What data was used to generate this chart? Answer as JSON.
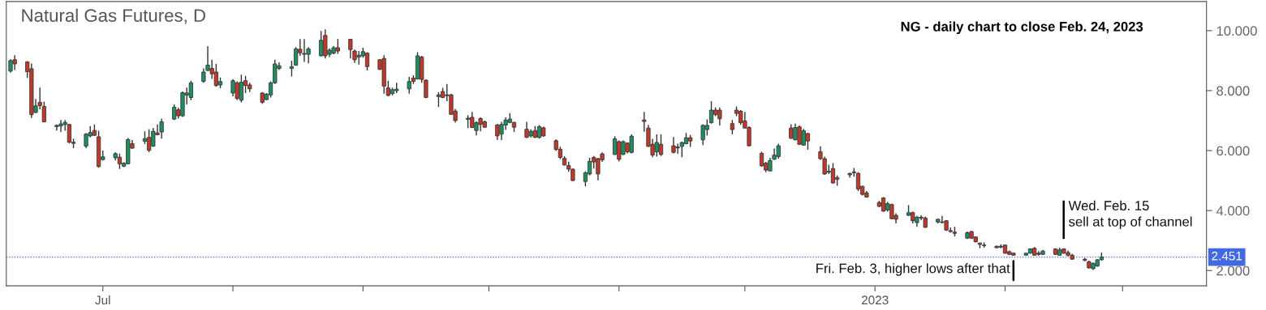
{
  "chart_data": {
    "type": "candlestick",
    "title": "Natural Gas Futures, D",
    "subtitle": "NG - daily chart to close Feb. 24, 2023",
    "x": [
      "2022-06-09",
      "2022-06-10",
      "2022-06-13",
      "2022-06-14",
      "2022-06-15",
      "2022-06-16",
      "2022-06-17",
      "2022-06-20",
      "2022-06-21",
      "2022-06-22",
      "2022-06-23",
      "2022-06-24",
      "2022-06-27",
      "2022-06-28",
      "2022-06-29",
      "2022-06-30",
      "2022-07-01",
      "2022-07-04",
      "2022-07-05",
      "2022-07-06",
      "2022-07-07",
      "2022-07-08",
      "2022-07-11",
      "2022-07-12",
      "2022-07-13",
      "2022-07-14",
      "2022-07-15",
      "2022-07-18",
      "2022-07-19",
      "2022-07-20",
      "2022-07-21",
      "2022-07-22",
      "2022-07-25",
      "2022-07-26",
      "2022-07-27",
      "2022-07-28",
      "2022-07-29",
      "2022-08-01",
      "2022-08-02",
      "2022-08-03",
      "2022-08-04",
      "2022-08-05",
      "2022-08-08",
      "2022-08-09",
      "2022-08-10",
      "2022-08-11",
      "2022-08-12",
      "2022-08-15",
      "2022-08-16",
      "2022-08-17",
      "2022-08-18",
      "2022-08-19",
      "2022-08-22",
      "2022-08-23",
      "2022-08-24",
      "2022-08-25",
      "2022-08-26",
      "2022-08-29",
      "2022-08-30",
      "2022-08-31",
      "2022-09-01",
      "2022-09-02",
      "2022-09-05",
      "2022-09-06",
      "2022-09-07",
      "2022-09-08",
      "2022-09-09",
      "2022-09-12",
      "2022-09-13",
      "2022-09-14",
      "2022-09-15",
      "2022-09-16",
      "2022-09-19",
      "2022-09-20",
      "2022-09-21",
      "2022-09-22",
      "2022-09-23",
      "2022-09-26",
      "2022-09-27",
      "2022-09-28",
      "2022-09-29",
      "2022-09-30",
      "2022-10-03",
      "2022-10-04",
      "2022-10-05",
      "2022-10-06",
      "2022-10-07",
      "2022-10-10",
      "2022-10-11",
      "2022-10-12",
      "2022-10-13",
      "2022-10-14",
      "2022-10-17",
      "2022-10-18",
      "2022-10-19",
      "2022-10-20",
      "2022-10-21",
      "2022-10-24",
      "2022-10-25",
      "2022-10-26",
      "2022-10-27",
      "2022-10-28",
      "2022-10-31",
      "2022-11-01",
      "2022-11-02",
      "2022-11-03",
      "2022-11-04",
      "2022-11-07",
      "2022-11-08",
      "2022-11-09",
      "2022-11-10",
      "2022-11-11",
      "2022-11-14",
      "2022-11-15",
      "2022-11-16",
      "2022-11-17",
      "2022-11-18",
      "2022-11-21",
      "2022-11-22",
      "2022-11-23",
      "2022-11-24",
      "2022-11-25",
      "2022-11-28",
      "2022-11-29",
      "2022-11-30",
      "2022-12-01",
      "2022-12-02",
      "2022-12-05",
      "2022-12-06",
      "2022-12-07",
      "2022-12-08",
      "2022-12-09",
      "2022-12-12",
      "2022-12-13",
      "2022-12-14",
      "2022-12-15",
      "2022-12-16",
      "2022-12-19",
      "2022-12-20",
      "2022-12-21",
      "2022-12-22",
      "2022-12-23",
      "2022-12-26",
      "2022-12-27",
      "2022-12-28",
      "2022-12-29",
      "2022-12-30",
      "2023-01-02",
      "2023-01-03",
      "2023-01-04",
      "2023-01-05",
      "2023-01-06",
      "2023-01-09",
      "2023-01-10",
      "2023-01-11",
      "2023-01-12",
      "2023-01-13",
      "2023-01-16",
      "2023-01-17",
      "2023-01-18",
      "2023-01-19",
      "2023-01-20",
      "2023-01-23",
      "2023-01-24",
      "2023-01-25",
      "2023-01-26",
      "2023-01-27",
      "2023-01-30",
      "2023-01-31",
      "2023-02-01",
      "2023-02-02",
      "2023-02-03",
      "2023-02-06",
      "2023-02-07",
      "2023-02-08",
      "2023-02-09",
      "2023-02-10",
      "2023-02-13",
      "2023-02-14",
      "2023-02-15",
      "2023-02-16",
      "2023-02-17",
      "2023-02-20",
      "2023-02-21",
      "2023-02-22",
      "2023-02-23",
      "2023-02-24"
    ],
    "ohlc": [
      [
        8.65,
        9.05,
        8.6,
        9.0
      ],
      [
        9.03,
        9.18,
        8.69,
        8.89
      ],
      [
        8.96,
        8.98,
        8.42,
        8.63
      ],
      [
        8.73,
        8.9,
        7.09,
        7.2
      ],
      [
        7.27,
        7.72,
        7.25,
        7.49
      ],
      [
        7.61,
        8.1,
        7.38,
        7.5
      ],
      [
        7.47,
        7.63,
        6.94,
        6.96
      ],
      [
        6.8,
        6.87,
        6.66,
        6.84
      ],
      [
        6.82,
        7.02,
        6.62,
        6.89
      ],
      [
        6.87,
        7.02,
        6.66,
        6.94
      ],
      [
        6.87,
        6.89,
        6.24,
        6.28
      ],
      [
        6.28,
        6.4,
        6.08,
        6.24
      ],
      [
        6.15,
        6.58,
        6.08,
        6.55
      ],
      [
        6.49,
        6.82,
        6.44,
        6.6
      ],
      [
        6.67,
        6.87,
        6.49,
        6.51
      ],
      [
        6.46,
        6.66,
        5.43,
        5.47
      ],
      [
        5.7,
        6.0,
        5.67,
        5.79
      ],
      [
        5.76,
        5.94,
        5.67,
        5.9
      ],
      [
        5.78,
        5.9,
        5.39,
        5.56
      ],
      [
        5.48,
        5.61,
        5.45,
        5.58
      ],
      [
        5.56,
        6.42,
        5.54,
        6.37
      ],
      [
        6.23,
        6.35,
        6.06,
        6.08
      ],
      [
        6.31,
        6.64,
        6.22,
        6.4
      ],
      [
        6.44,
        6.71,
        5.95,
        6.01
      ],
      [
        6.15,
        6.76,
        6.12,
        6.64
      ],
      [
        6.59,
        6.87,
        6.51,
        6.53
      ],
      [
        6.62,
        7.07,
        6.4,
        6.96
      ],
      [
        7.05,
        7.54,
        7.02,
        7.45
      ],
      [
        7.36,
        7.43,
        7.07,
        7.16
      ],
      [
        7.16,
        7.97,
        7.12,
        7.93
      ],
      [
        7.85,
        8.1,
        7.54,
        7.92
      ],
      [
        7.77,
        8.33,
        7.68,
        8.26
      ],
      [
        8.31,
        8.74,
        8.26,
        8.62
      ],
      [
        8.67,
        9.48,
        8.65,
        8.85
      ],
      [
        8.74,
        9.03,
        8.4,
        8.56
      ],
      [
        8.62,
        8.89,
        8.13,
        8.17
      ],
      [
        8.19,
        8.44,
        8.08,
        8.3
      ],
      [
        7.92,
        8.38,
        7.81,
        8.33
      ],
      [
        8.26,
        8.31,
        7.68,
        7.74
      ],
      [
        7.68,
        8.53,
        7.61,
        8.28
      ],
      [
        8.33,
        8.49,
        7.92,
        8.17
      ],
      [
        8.19,
        8.26,
        7.95,
        8.06
      ],
      [
        7.92,
        7.95,
        7.56,
        7.61
      ],
      [
        7.7,
        7.92,
        7.68,
        7.88
      ],
      [
        7.86,
        8.31,
        7.77,
        8.26
      ],
      [
        8.26,
        9.03,
        8.22,
        8.89
      ],
      [
        8.74,
        8.94,
        8.69,
        8.83
      ],
      [
        8.74,
        9.0,
        8.47,
        8.8
      ],
      [
        8.85,
        9.45,
        8.83,
        9.39
      ],
      [
        9.38,
        9.72,
        9.16,
        9.26
      ],
      [
        9.21,
        9.72,
        8.96,
        9.24
      ],
      [
        9.21,
        9.45,
        8.91,
        9.39
      ],
      [
        9.16,
        9.99,
        9.14,
        9.68
      ],
      [
        9.84,
        10.04,
        9.07,
        9.16
      ],
      [
        9.21,
        9.41,
        9.12,
        9.35
      ],
      [
        9.25,
        9.48,
        9.21,
        9.43
      ],
      [
        9.43,
        9.72,
        9.23,
        9.32
      ],
      [
        9.71,
        9.72,
        9.07,
        9.37
      ],
      [
        9.32,
        9.37,
        8.92,
        9.03
      ],
      [
        9.12,
        9.32,
        8.87,
        9.18
      ],
      [
        9.16,
        9.43,
        9.1,
        9.3
      ],
      [
        9.25,
        9.28,
        8.67,
        8.8
      ],
      [
        9.03,
        9.05,
        8.69,
        8.71
      ],
      [
        9.07,
        9.18,
        7.9,
        8.15
      ],
      [
        8.09,
        8.33,
        7.81,
        7.84
      ],
      [
        7.9,
        8.1,
        7.84,
        8.03
      ],
      [
        8.0,
        8.26,
        7.92,
        8.05
      ],
      [
        8.06,
        8.46,
        7.9,
        8.3
      ],
      [
        8.42,
        8.51,
        8.22,
        8.31
      ],
      [
        8.39,
        9.28,
        8.37,
        9.16
      ],
      [
        9.12,
        9.16,
        8.26,
        8.37
      ],
      [
        8.35,
        8.37,
        7.75,
        7.77
      ],
      [
        7.8,
        7.95,
        7.45,
        7.86
      ],
      [
        7.97,
        8.09,
        7.75,
        7.77
      ],
      [
        7.83,
        8.22,
        7.65,
        7.86
      ],
      [
        7.86,
        7.9,
        7.19,
        7.21
      ],
      [
        7.32,
        7.39,
        6.93,
        7.0
      ],
      [
        7.04,
        7.18,
        6.75,
        7.08
      ],
      [
        7.11,
        7.29,
        6.75,
        6.77
      ],
      [
        6.67,
        6.98,
        6.51,
        6.93
      ],
      [
        7.07,
        7.11,
        6.64,
        6.87
      ],
      [
        6.96,
        7.0,
        6.76,
        6.78
      ],
      [
        6.85,
        6.89,
        6.35,
        6.49
      ],
      [
        6.55,
        6.96,
        6.35,
        6.87
      ],
      [
        6.85,
        7.11,
        6.69,
        7.02
      ],
      [
        6.94,
        7.25,
        6.91,
        7.05
      ],
      [
        6.94,
        6.96,
        6.62,
        6.78
      ],
      [
        6.71,
        6.96,
        6.42,
        6.44
      ],
      [
        6.49,
        6.71,
        6.44,
        6.64
      ],
      [
        6.67,
        6.82,
        6.42,
        6.44
      ],
      [
        6.44,
        6.85,
        6.4,
        6.8
      ],
      [
        6.76,
        6.8,
        6.46,
        6.49
      ],
      [
        6.33,
        6.37,
        5.99,
        6.04
      ],
      [
        6.04,
        6.13,
        5.72,
        5.77
      ],
      [
        5.74,
        5.81,
        5.5,
        5.52
      ],
      [
        5.5,
        5.63,
        5.29,
        5.38
      ],
      [
        5.38,
        5.41,
        4.98,
        5.0
      ],
      [
        4.97,
        5.31,
        4.81,
        5.26
      ],
      [
        5.22,
        5.76,
        5.17,
        5.64
      ],
      [
        5.77,
        5.82,
        5.4,
        5.62
      ],
      [
        5.73,
        5.76,
        5.01,
        5.22
      ],
      [
        5.89,
        5.94,
        5.62,
        5.69
      ],
      [
        5.87,
        6.48,
        5.85,
        6.39
      ],
      [
        6.3,
        6.34,
        5.64,
        5.71
      ],
      [
        5.87,
        6.34,
        5.85,
        6.3
      ],
      [
        6.25,
        6.27,
        5.91,
        5.96
      ],
      [
        5.94,
        6.54,
        5.91,
        6.48
      ],
      [
        7.02,
        7.29,
        6.63,
        6.97
      ],
      [
        6.75,
        6.86,
        6.12,
        6.14
      ],
      [
        6.21,
        6.39,
        5.78,
        5.85
      ],
      [
        5.96,
        6.54,
        5.8,
        6.27
      ],
      [
        6.21,
        6.54,
        5.82,
        5.87
      ],
      [
        6.16,
        6.45,
        5.91,
        5.94
      ],
      [
        6.12,
        6.23,
        5.89,
        6.09
      ],
      [
        6.14,
        6.3,
        5.78,
        6.27
      ],
      [
        6.23,
        6.59,
        6.21,
        6.43
      ],
      [
        6.43,
        6.52,
        6.12,
        6.32
      ],
      [
        6.36,
        6.88,
        6.18,
        6.84
      ],
      [
        6.7,
        7.04,
        6.5,
        6.84
      ],
      [
        6.93,
        7.65,
        6.9,
        7.35
      ],
      [
        7.35,
        7.44,
        7.15,
        7.2
      ],
      [
        7.35,
        7.44,
        6.84,
        7.06
      ],
      [
        6.9,
        7.02,
        6.54,
        6.7
      ],
      [
        7.35,
        7.47,
        7.15,
        7.24
      ],
      [
        7.31,
        7.35,
        6.86,
        6.93
      ],
      [
        6.99,
        7.29,
        6.75,
        6.75
      ],
      [
        6.77,
        6.81,
        6.14,
        6.16
      ],
      [
        5.91,
        5.96,
        5.46,
        5.49
      ],
      [
        5.58,
        5.62,
        5.28,
        5.35
      ],
      [
        5.32,
        5.76,
        5.31,
        5.67
      ],
      [
        5.71,
        6.07,
        5.69,
        5.85
      ],
      [
        5.8,
        6.23,
        5.73,
        6.16
      ],
      [
        6.75,
        6.88,
        6.39,
        6.41
      ],
      [
        6.36,
        6.9,
        6.34,
        6.77
      ],
      [
        6.79,
        6.84,
        6.18,
        6.21
      ],
      [
        6.18,
        6.72,
        6.16,
        6.66
      ],
      [
        6.57,
        6.59,
        6.03,
        6.32
      ],
      [
        5.96,
        6.14,
        5.69,
        5.73
      ],
      [
        5.73,
        5.8,
        5.19,
        5.22
      ],
      [
        5.28,
        5.53,
        5.22,
        5.31
      ],
      [
        5.4,
        5.58,
        4.9,
        4.92
      ],
      [
        5.1,
        5.17,
        4.83,
        5.04
      ],
      [
        5.24,
        5.26,
        5.1,
        5.19
      ],
      [
        5.26,
        5.42,
        5.13,
        5.29
      ],
      [
        5.24,
        5.28,
        4.65,
        4.72
      ],
      [
        4.81,
        4.83,
        4.5,
        4.54
      ],
      [
        4.59,
        4.65,
        4.43,
        4.45
      ],
      [
        4.27,
        4.32,
        4.11,
        4.14
      ],
      [
        4.42,
        4.45,
        3.96,
        3.98
      ],
      [
        4.02,
        4.29,
        3.96,
        4.23
      ],
      [
        4.2,
        4.23,
        3.71,
        3.73
      ],
      [
        3.84,
        3.91,
        3.57,
        3.71
      ],
      [
        3.84,
        4.18,
        3.82,
        3.93
      ],
      [
        3.93,
        3.96,
        3.57,
        3.66
      ],
      [
        3.6,
        3.82,
        3.46,
        3.78
      ],
      [
        3.75,
        3.84,
        3.68,
        3.78
      ],
      [
        3.75,
        3.8,
        3.42,
        3.44
      ],
      [
        3.62,
        3.73,
        3.57,
        3.71
      ],
      [
        3.6,
        3.82,
        3.57,
        3.62
      ],
      [
        3.66,
        3.68,
        3.32,
        3.35
      ],
      [
        3.33,
        3.44,
        3.26,
        3.3
      ],
      [
        3.28,
        3.46,
        3.14,
        3.24
      ],
      [
        3.08,
        3.3,
        3.05,
        3.26
      ],
      [
        3.3,
        3.32,
        3.05,
        3.08
      ],
      [
        3.12,
        3.14,
        2.94,
        2.96
      ],
      [
        2.92,
        2.92,
        2.74,
        2.87
      ],
      [
        2.83,
        2.94,
        2.76,
        2.85
      ],
      [
        2.81,
        2.83,
        2.74,
        2.76
      ],
      [
        2.78,
        2.87,
        2.74,
        2.81
      ],
      [
        2.85,
        2.87,
        2.56,
        2.58
      ],
      [
        2.63,
        2.67,
        2.51,
        2.54
      ],
      [
        2.58,
        2.6,
        2.49,
        2.51
      ],
      [
        2.51,
        2.58,
        2.5,
        2.58
      ],
      [
        2.58,
        2.74,
        2.56,
        2.72
      ],
      [
        2.74,
        2.78,
        2.49,
        2.51
      ],
      [
        2.58,
        2.65,
        2.49,
        2.54
      ],
      [
        2.54,
        2.69,
        2.52,
        2.65
      ],
      [
        2.72,
        2.74,
        2.52,
        2.54
      ],
      [
        2.51,
        2.76,
        2.49,
        2.69
      ],
      [
        2.72,
        2.74,
        2.56,
        2.58
      ],
      [
        2.6,
        2.67,
        2.47,
        2.51
      ],
      [
        2.51,
        2.56,
        2.36,
        2.38
      ],
      [
        2.38,
        2.42,
        2.31,
        2.34
      ],
      [
        2.29,
        2.33,
        2.06,
        2.09
      ],
      [
        2.06,
        2.27,
        2.02,
        2.24
      ],
      [
        2.15,
        2.38,
        2.13,
        2.36
      ],
      [
        2.36,
        2.6,
        2.33,
        2.45
      ]
    ],
    "xlim": [
      "2022-06-08",
      "2023-03-21"
    ],
    "xticks": [
      {
        "value": "2022-07-01",
        "label": "Jul"
      },
      {
        "value": "2022-08-01",
        "label": null
      },
      {
        "value": "2022-09-01",
        "label": null
      },
      {
        "value": "2022-10-01",
        "label": null
      },
      {
        "value": "2022-11-01",
        "label": null
      },
      {
        "value": "2022-12-01",
        "label": null
      },
      {
        "value": "2023-01-01",
        "label": "2023"
      },
      {
        "value": "2023-02-01",
        "label": null
      },
      {
        "value": "2023-03-01",
        "label": null
      }
    ],
    "ylim": [
      1.49,
      10.97
    ],
    "yticks": [
      {
        "value": 2,
        "label": "2.000"
      },
      {
        "value": 4,
        "label": "4.000"
      },
      {
        "value": 6,
        "label": "6.000"
      },
      {
        "value": 8,
        "label": "8.000"
      },
      {
        "value": 10,
        "label": "10.000"
      }
    ],
    "ref_lines": [
      {
        "axis": "y",
        "value": 2.451,
        "label": "2.451",
        "color": "#4169e1",
        "line_style": "dotted"
      }
    ],
    "annotations": [
      "Wed. Feb. 15\nsell at top of channel",
      {
        "text": "Fri. Feb. 3, higher lows after that",
        "x": "2023-02-03",
        "y": 2.32
      }
    ],
    "grid": false,
    "legend": false
  }
}
